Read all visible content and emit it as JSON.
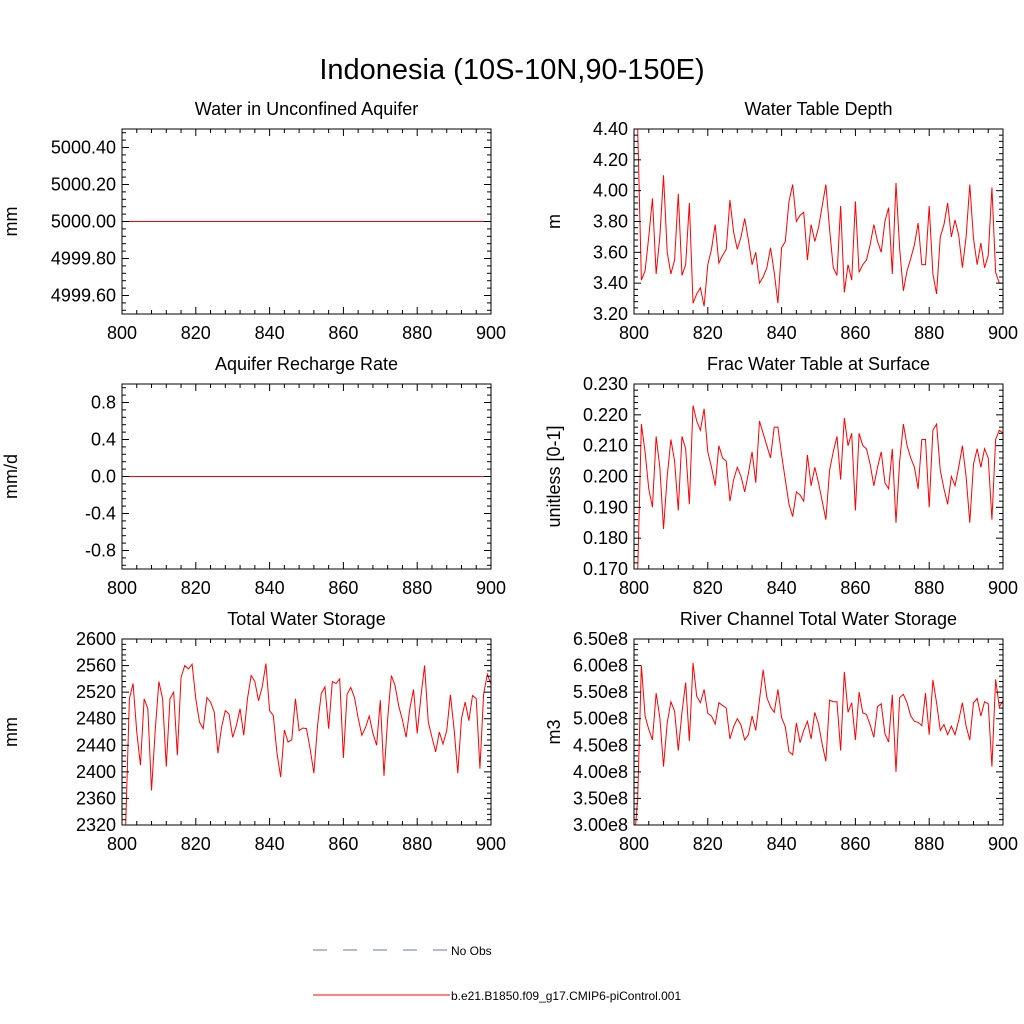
{
  "figure_title": "Indonesia (10S-10N,90-150E)",
  "legend": [
    {
      "label": "No Obs",
      "color": "#6677bb",
      "style": "dashed"
    },
    {
      "label": "b.e21.B1850.f09_g17.CMIP6-piControl.001",
      "color": "#ff0000",
      "style": "solid"
    }
  ],
  "chart_data": [
    {
      "type": "line",
      "title": "Water in Unconfined Aquifer",
      "ylabel": "mm",
      "xlim": [
        800,
        900
      ],
      "ylim": [
        4999.5,
        5000.5
      ],
      "xticks": [
        "800",
        "820",
        "840",
        "860",
        "880",
        "900"
      ],
      "yticks": [
        4999.6,
        4999.8,
        5000.0,
        5000.2,
        5000.4
      ],
      "ytick_labels": [
        "4999.60",
        "4999.80",
        "5000.00",
        "5000.20",
        "5000.40"
      ],
      "series": [
        {
          "color": "#ff0000",
          "x_start": 800,
          "x_end": 900,
          "values": [
            5000,
            5000
          ]
        }
      ]
    },
    {
      "type": "line",
      "title": "Water Table Depth",
      "ylabel": "m",
      "xlim": [
        800,
        900
      ],
      "ylim": [
        3.2,
        4.4
      ],
      "xticks": [
        "800",
        "820",
        "840",
        "860",
        "880",
        "900"
      ],
      "yticks": [
        3.2,
        3.4,
        3.6,
        3.8,
        4.0,
        4.2,
        4.4
      ],
      "ytick_labels": [
        "3.20",
        "3.40",
        "3.60",
        "3.80",
        "4.00",
        "4.20",
        "4.40"
      ],
      "series": [
        {
          "color": "#ff0000",
          "x_start": 800,
          "x_end": 900,
          "values": [
            4.44,
            4.4,
            3.42,
            3.48,
            3.7,
            3.95,
            3.46,
            3.7,
            4.1,
            3.6,
            3.46,
            3.55,
            3.98,
            3.45,
            3.52,
            3.92,
            3.27,
            3.33,
            3.37,
            3.25,
            3.52,
            3.62,
            3.78,
            3.53,
            3.58,
            3.62,
            3.94,
            3.73,
            3.62,
            3.7,
            3.82,
            3.68,
            3.52,
            3.6,
            3.4,
            3.44,
            3.5,
            3.63,
            3.47,
            3.27,
            3.63,
            3.67,
            3.93,
            4.04,
            3.8,
            3.84,
            3.86,
            3.55,
            3.78,
            3.67,
            3.76,
            3.9,
            4.04,
            3.75,
            3.5,
            3.45,
            3.9,
            3.34,
            3.52,
            3.42,
            3.93,
            3.47,
            3.52,
            3.55,
            3.65,
            3.78,
            3.67,
            3.6,
            3.8,
            3.89,
            3.46,
            4.05,
            3.62,
            3.35,
            3.48,
            3.56,
            3.65,
            3.79,
            3.52,
            3.52,
            3.9,
            3.46,
            3.33,
            3.7,
            3.78,
            3.92,
            3.7,
            3.81,
            3.71,
            3.5,
            3.7,
            4.04,
            3.69,
            3.52,
            3.66,
            3.5,
            3.58,
            4.02,
            3.47,
            3.4,
            3.4
          ]
        }
      ]
    },
    {
      "type": "line",
      "title": "Aquifer Recharge Rate",
      "ylabel": "mm/d",
      "xlim": [
        800,
        900
      ],
      "ylim": [
        -1.0,
        1.0
      ],
      "xticks": [
        "800",
        "820",
        "840",
        "860",
        "880",
        "900"
      ],
      "yticks": [
        -0.8,
        -0.4,
        0.0,
        0.4,
        0.8
      ],
      "ytick_labels": [
        "-0.8",
        "-0.4",
        "0.0",
        "0.4",
        "0.8"
      ],
      "series": [
        {
          "color": "#ff0000",
          "x_start": 800,
          "x_end": 900,
          "values": [
            0,
            0
          ]
        }
      ]
    },
    {
      "type": "line",
      "title": "Frac Water Table at Surface",
      "ylabel": "unitless [0-1]",
      "xlim": [
        800,
        900
      ],
      "ylim": [
        0.17,
        0.23
      ],
      "xticks": [
        "800",
        "820",
        "840",
        "860",
        "880",
        "900"
      ],
      "yticks": [
        0.17,
        0.18,
        0.19,
        0.2,
        0.21,
        0.22,
        0.23
      ],
      "ytick_labels": [
        "0.170",
        "0.180",
        "0.190",
        "0.200",
        "0.210",
        "0.220",
        "0.230"
      ],
      "series": [
        {
          "color": "#ff0000",
          "x_start": 800,
          "x_end": 900,
          "values": [
            0.163,
            0.169,
            0.217,
            0.208,
            0.196,
            0.19,
            0.213,
            0.203,
            0.183,
            0.2,
            0.212,
            0.205,
            0.189,
            0.213,
            0.209,
            0.191,
            0.223,
            0.218,
            0.215,
            0.222,
            0.208,
            0.203,
            0.197,
            0.21,
            0.206,
            0.205,
            0.192,
            0.199,
            0.203,
            0.2,
            0.195,
            0.201,
            0.208,
            0.198,
            0.218,
            0.214,
            0.21,
            0.206,
            0.216,
            0.216,
            0.207,
            0.199,
            0.191,
            0.187,
            0.195,
            0.194,
            0.192,
            0.207,
            0.197,
            0.203,
            0.198,
            0.192,
            0.186,
            0.202,
            0.208,
            0.213,
            0.199,
            0.219,
            0.21,
            0.214,
            0.189,
            0.214,
            0.21,
            0.209,
            0.204,
            0.197,
            0.203,
            0.208,
            0.198,
            0.196,
            0.209,
            0.185,
            0.205,
            0.217,
            0.21,
            0.206,
            0.203,
            0.196,
            0.212,
            0.212,
            0.19,
            0.215,
            0.217,
            0.202,
            0.196,
            0.191,
            0.2,
            0.197,
            0.203,
            0.21,
            0.2,
            0.185,
            0.204,
            0.209,
            0.203,
            0.209,
            0.206,
            0.186,
            0.212,
            0.215,
            0.214
          ]
        }
      ]
    },
    {
      "type": "line",
      "title": "Total Water Storage",
      "ylabel": "mm",
      "xlim": [
        800,
        900
      ],
      "ylim": [
        2320,
        2600
      ],
      "xticks": [
        "800",
        "820",
        "840",
        "860",
        "880",
        "900"
      ],
      "yticks": [
        2320,
        2360,
        2400,
        2440,
        2480,
        2520,
        2560,
        2600
      ],
      "ytick_labels": [
        "2320",
        "2360",
        "2400",
        "2440",
        "2480",
        "2520",
        "2560",
        "2600"
      ],
      "series": [
        {
          "color": "#ff0000",
          "x_start": 800,
          "x_end": 900,
          "values": [
            2300,
            2320,
            2510,
            2533,
            2460,
            2410,
            2510,
            2495,
            2372,
            2462,
            2536,
            2510,
            2408,
            2510,
            2520,
            2425,
            2542,
            2560,
            2555,
            2562,
            2510,
            2475,
            2465,
            2512,
            2505,
            2490,
            2428,
            2468,
            2492,
            2487,
            2452,
            2470,
            2495,
            2455,
            2510,
            2545,
            2536,
            2507,
            2528,
            2563,
            2492,
            2485,
            2428,
            2392,
            2463,
            2445,
            2448,
            2510,
            2462,
            2466,
            2465,
            2434,
            2398,
            2470,
            2518,
            2528,
            2465,
            2536,
            2533,
            2540,
            2421,
            2517,
            2527,
            2512,
            2481,
            2455,
            2467,
            2484,
            2458,
            2440,
            2508,
            2394,
            2480,
            2545,
            2530,
            2499,
            2478,
            2452,
            2495,
            2524,
            2458,
            2513,
            2560,
            2475,
            2452,
            2430,
            2460,
            2442,
            2462,
            2516,
            2464,
            2398,
            2480,
            2505,
            2477,
            2515,
            2510,
            2405,
            2517,
            2547,
            2532
          ]
        }
      ]
    },
    {
      "type": "line",
      "title": "River Channel Total Water Storage",
      "ylabel": "m3",
      "xlim": [
        800,
        900
      ],
      "ylim": [
        300000000,
        650000000
      ],
      "xticks": [
        "800",
        "820",
        "840",
        "860",
        "880",
        "900"
      ],
      "yticks": [
        300000000,
        350000000,
        400000000,
        450000000,
        500000000,
        550000000,
        600000000,
        650000000
      ],
      "ytick_labels": [
        "3.00e8",
        "3.50e8",
        "4.00e8",
        "4.50e8",
        "5.00e8",
        "5.50e8",
        "6.00e8",
        "6.50e8"
      ],
      "series": [
        {
          "color": "#ff0000",
          "x_start": 800,
          "x_end": 900,
          "values": [
            260000000,
            350000000,
            600000000,
            505000000,
            480000000,
            460000000,
            548000000,
            502000000,
            410000000,
            492000000,
            532000000,
            514000000,
            440000000,
            512000000,
            568000000,
            458000000,
            605000000,
            542000000,
            530000000,
            555000000,
            510000000,
            505000000,
            490000000,
            530000000,
            525000000,
            520000000,
            462000000,
            485000000,
            500000000,
            488000000,
            460000000,
            470000000,
            505000000,
            478000000,
            535000000,
            592000000,
            540000000,
            522000000,
            512000000,
            555000000,
            502000000,
            485000000,
            438000000,
            432000000,
            492000000,
            455000000,
            478000000,
            495000000,
            462000000,
            512000000,
            490000000,
            452000000,
            420000000,
            535000000,
            532000000,
            532000000,
            440000000,
            588000000,
            512000000,
            530000000,
            460000000,
            550000000,
            511000000,
            508000000,
            488000000,
            465000000,
            523000000,
            528000000,
            472000000,
            456000000,
            545000000,
            400000000,
            540000000,
            546000000,
            530000000,
            505000000,
            495000000,
            493000000,
            487000000,
            548000000,
            470000000,
            573000000,
            530000000,
            478000000,
            489000000,
            470000000,
            486000000,
            470000000,
            497000000,
            530000000,
            486000000,
            460000000,
            530000000,
            538000000,
            505000000,
            532000000,
            528000000,
            410000000,
            574000000,
            522000000,
            534000000
          ]
        }
      ]
    }
  ]
}
